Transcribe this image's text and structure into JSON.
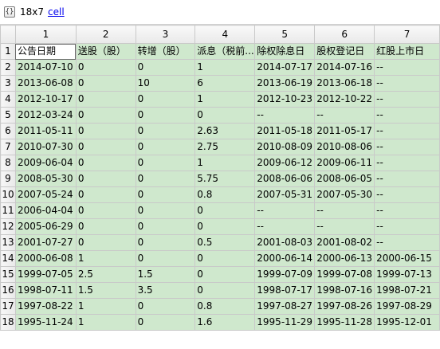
{
  "window": {
    "dims": "18x7",
    "type_label": "cell",
    "icon": "variable-cell-icon"
  },
  "columns": [
    "1",
    "2",
    "3",
    "4",
    "5",
    "6",
    "7"
  ],
  "rows": [
    {
      "index": "1",
      "cells": [
        "公告日期",
        "送股（股）",
        "转增（股）",
        "派息（税前...",
        "除权除息日",
        "股权登记日",
        "红股上市日"
      ]
    },
    {
      "index": "2",
      "cells": [
        "2014-07-10",
        "0",
        "0",
        "1",
        "2014-07-17",
        "2014-07-16",
        "--"
      ]
    },
    {
      "index": "3",
      "cells": [
        "2013-06-08",
        "0",
        "10",
        "6",
        "2013-06-19",
        "2013-06-18",
        "--"
      ]
    },
    {
      "index": "4",
      "cells": [
        "2012-10-17",
        "0",
        "0",
        "1",
        "2012-10-23",
        "2012-10-22",
        "--"
      ]
    },
    {
      "index": "5",
      "cells": [
        "2012-03-24",
        "0",
        "0",
        "0",
        "--",
        "--",
        "--"
      ]
    },
    {
      "index": "6",
      "cells": [
        "2011-05-11",
        "0",
        "0",
        "2.63",
        "2011-05-18",
        "2011-05-17",
        "--"
      ]
    },
    {
      "index": "7",
      "cells": [
        "2010-07-30",
        "0",
        "0",
        "2.75",
        "2010-08-09",
        "2010-08-06",
        "--"
      ]
    },
    {
      "index": "8",
      "cells": [
        "2009-06-04",
        "0",
        "0",
        "1",
        "2009-06-12",
        "2009-06-11",
        "--"
      ]
    },
    {
      "index": "9",
      "cells": [
        "2008-05-30",
        "0",
        "0",
        "5.75",
        "2008-06-06",
        "2008-06-05",
        "--"
      ]
    },
    {
      "index": "10",
      "cells": [
        "2007-05-24",
        "0",
        "0",
        "0.8",
        "2007-05-31",
        "2007-05-30",
        "--"
      ]
    },
    {
      "index": "11",
      "cells": [
        "2006-04-04",
        "0",
        "0",
        "0",
        "--",
        "--",
        "--"
      ]
    },
    {
      "index": "12",
      "cells": [
        "2005-06-29",
        "0",
        "0",
        "0",
        "--",
        "--",
        "--"
      ]
    },
    {
      "index": "13",
      "cells": [
        "2001-07-27",
        "0",
        "0",
        "0.5",
        "2001-08-03",
        "2001-08-02",
        "--"
      ]
    },
    {
      "index": "14",
      "cells": [
        "2000-06-08",
        "1",
        "0",
        "0",
        "2000-06-14",
        "2000-06-13",
        "2000-06-15"
      ]
    },
    {
      "index": "15",
      "cells": [
        "1999-07-05",
        "2.5",
        "1.5",
        "0",
        "1999-07-09",
        "1999-07-08",
        "1999-07-13"
      ]
    },
    {
      "index": "16",
      "cells": [
        "1998-07-11",
        "1.5",
        "3.5",
        "0",
        "1998-07-17",
        "1998-07-16",
        "1998-07-21"
      ]
    },
    {
      "index": "17",
      "cells": [
        "1997-08-22",
        "1",
        "0",
        "0.8",
        "1997-08-27",
        "1997-08-26",
        "1997-08-29"
      ]
    },
    {
      "index": "18",
      "cells": [
        "1995-11-24",
        "1",
        "0",
        "1.6",
        "1995-11-29",
        "1995-11-28",
        "1995-12-01"
      ]
    }
  ],
  "colors": {
    "cell_bg": "#cfe8cd",
    "header_bg": "#ececec",
    "link": "#0000ee"
  }
}
